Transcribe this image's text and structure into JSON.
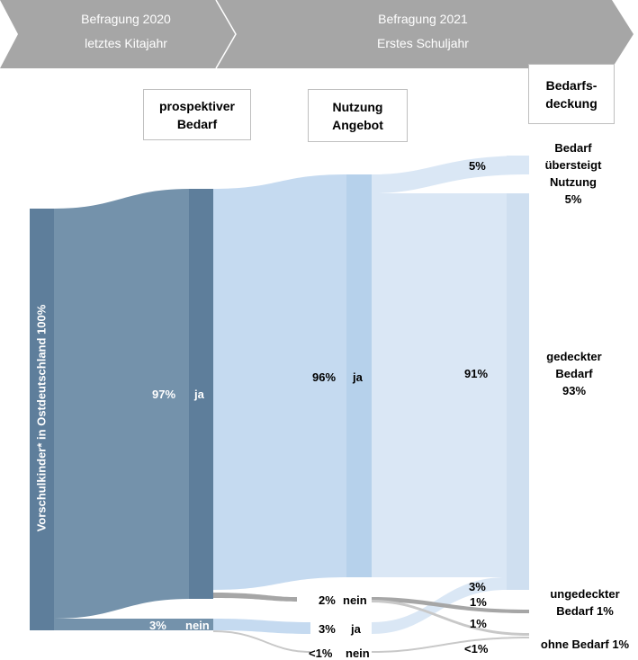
{
  "banner": {
    "year1_title": "Befragung 2020",
    "year1_subtitle": "letztes Kitajahr",
    "year2_title": "Befragung 2021",
    "year2_subtitle": "Erstes Schuljahr",
    "color": "#a6a6a6"
  },
  "column_headers": {
    "bedarf": "prospektiver\nBedarf",
    "nutzung": "Nutzung\nAngebot",
    "deckung": "Bedarfs-\ndeckung"
  },
  "source_label": "Vorschulkinder* in Ostdeutschland 100%",
  "flow_labels": {
    "ja_97_pct": "97%",
    "ja_97_word": "ja",
    "nein_3_pct": "3%",
    "nein_3_word": "nein",
    "ja_96_pct": "96%",
    "ja_96_word": "ja",
    "nein_2": "2%",
    "nein_2_word": "nein",
    "ja_3_pct": "3%",
    "ja_3_word": "ja",
    "nein_lt1_pct": "<1%",
    "nein_lt1_word": "nein",
    "out_5": "5%",
    "out_91": "91%",
    "out_3": "3%",
    "out_1a": "1%",
    "out_1b": "1%",
    "out_lt1": "<1%"
  },
  "outcomes": {
    "exceeds": "Bedarf\nübersteigt\nNutzung\n5%",
    "covered": "gedeckter\nBedarf\n93%",
    "uncovered": "ungedeckter\nBedarf 1%",
    "no_need": "ohne Bedarf 1%"
  },
  "colors": {
    "source_node": "#5e7e9b",
    "source_flow": "#7492ab",
    "ja_node": "#5e7e9b",
    "nein_flow_grey": "#a6a6a6",
    "light_blue_flow": "#c5daf0",
    "light_blue_node": "#b6d1eb",
    "pale_blue_flow": "#dae7f5",
    "pale_blue_node": "#cfdff0",
    "grey_light": "#c8c8c8"
  },
  "chart_data": {
    "type": "sankey",
    "nodes": [
      {
        "id": "source",
        "label": "Vorschulkinder* in Ostdeutschland 100%",
        "value": 100
      },
      {
        "id": "bedarf_ja",
        "label": "ja",
        "value": 97
      },
      {
        "id": "bedarf_nein",
        "label": "nein",
        "value": 3
      },
      {
        "id": "nutzung_ja_a",
        "label": "ja",
        "value": 96
      },
      {
        "id": "nutzung_nein_a",
        "label": "nein",
        "value": 2
      },
      {
        "id": "nutzung_ja_b",
        "label": "ja",
        "value": 3
      },
      {
        "id": "nutzung_nein_b",
        "label": "nein",
        "value": 0.5
      },
      {
        "id": "exceeds",
        "label": "Bedarf übersteigt Nutzung 5%",
        "value": 5
      },
      {
        "id": "covered",
        "label": "gedeckter Bedarf 93%",
        "value": 93
      },
      {
        "id": "uncovered",
        "label": "ungedeckter Bedarf 1%",
        "value": 1
      },
      {
        "id": "no_need",
        "label": "ohne Bedarf 1%",
        "value": 1
      }
    ],
    "links": [
      {
        "source": "source",
        "target": "bedarf_ja",
        "value": 97
      },
      {
        "source": "source",
        "target": "bedarf_nein",
        "value": 3
      },
      {
        "source": "bedarf_ja",
        "target": "nutzung_ja_a",
        "value": 96
      },
      {
        "source": "bedarf_ja",
        "target": "nutzung_nein_a",
        "value": 2
      },
      {
        "source": "bedarf_nein",
        "target": "nutzung_ja_b",
        "value": 3
      },
      {
        "source": "bedarf_nein",
        "target": "nutzung_nein_b",
        "value": 0.5
      },
      {
        "source": "nutzung_ja_a",
        "target": "exceeds",
        "value": 5
      },
      {
        "source": "nutzung_ja_a",
        "target": "covered",
        "value": 91
      },
      {
        "source": "nutzung_ja_b",
        "target": "covered",
        "value": 3
      },
      {
        "source": "nutzung_nein_a",
        "target": "uncovered",
        "value": 1
      },
      {
        "source": "nutzung_nein_a",
        "target": "no_need",
        "value": 1
      },
      {
        "source": "nutzung_nein_b",
        "target": "no_need",
        "value": 0.5
      }
    ]
  }
}
